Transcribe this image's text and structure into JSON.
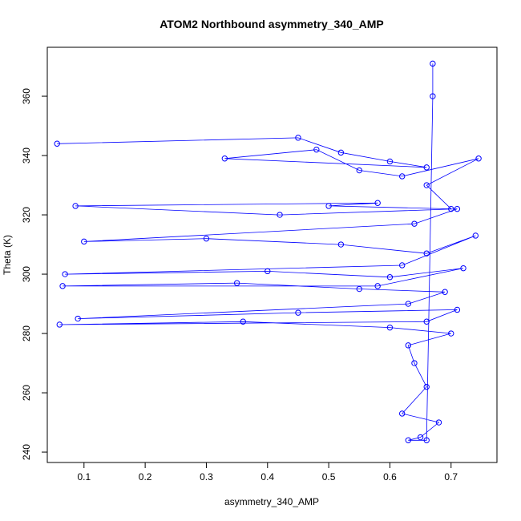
{
  "chart_data": {
    "type": "scatter",
    "title": "ATOM2 Northbound asymmetry_340_AMP",
    "xlabel": "asymmetry_340_AMP",
    "ylabel": "Theta (K)",
    "xlim": [
      0.04,
      0.775
    ],
    "ylim": [
      236.5,
      376.5
    ],
    "xticks": [
      0.1,
      0.2,
      0.3,
      0.4,
      0.5,
      0.6,
      0.7
    ],
    "yticks": [
      240,
      260,
      280,
      300,
      320,
      340,
      360
    ],
    "xtick_labels": [
      "0.1",
      "0.2",
      "0.3",
      "0.4",
      "0.5",
      "0.6",
      "0.7"
    ],
    "ytick_labels": [
      "240",
      "260",
      "280",
      "300",
      "320",
      "340",
      "360"
    ],
    "grid": false,
    "series": [
      {
        "color": "#0000ff",
        "style": "points-and-lines",
        "x": [
          0.056,
          0.45,
          0.52,
          0.6,
          0.66,
          0.33,
          0.48,
          0.55,
          0.62,
          0.745,
          0.66,
          0.7,
          0.5,
          0.58,
          0.086,
          0.42,
          0.71,
          0.64,
          0.1,
          0.3,
          0.52,
          0.66,
          0.74,
          0.62,
          0.069,
          0.4,
          0.6,
          0.72,
          0.58,
          0.065,
          0.35,
          0.55,
          0.69,
          0.63,
          0.09,
          0.45,
          0.71,
          0.66,
          0.06,
          0.36,
          0.6,
          0.7,
          0.63,
          0.64,
          0.66,
          0.62,
          0.68,
          0.65,
          0.63,
          0.66,
          0.67,
          0.67
        ],
        "y": [
          344,
          346,
          341,
          338,
          336,
          339,
          342,
          335,
          333,
          339,
          330,
          322,
          323,
          324,
          323,
          320,
          322,
          317,
          311,
          312,
          310,
          307,
          313,
          303,
          300,
          301,
          299,
          302,
          296,
          296,
          297,
          295,
          294,
          290,
          285,
          287,
          288,
          284,
          283,
          284,
          282,
          280,
          276,
          270,
          262,
          253,
          250,
          245,
          244,
          244,
          360,
          371
        ]
      }
    ]
  }
}
